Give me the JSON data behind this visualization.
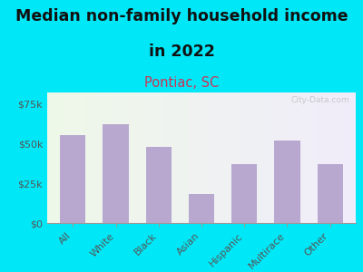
{
  "title_line1": "Median non-family household income",
  "title_line2": "in 2022",
  "subtitle": "Pontiac, SC",
  "categories": [
    "All",
    "White",
    "Black",
    "Asian",
    "Hispanic",
    "Multirace",
    "Other"
  ],
  "values": [
    55000,
    62000,
    48000,
    18000,
    37000,
    52000,
    37000
  ],
  "bar_color": "#b8a8d0",
  "background_outer": "#00e8f8",
  "background_inner_left": "#eef8e8",
  "background_inner_right": "#f0ecfa",
  "yticks": [
    0,
    25000,
    50000,
    75000
  ],
  "ytick_labels": [
    "$0",
    "$25k",
    "$50k",
    "$75k"
  ],
  "ylim": [
    0,
    82000
  ],
  "title_fontsize": 12.5,
  "subtitle_fontsize": 10.5,
  "subtitle_color": "#cc3355",
  "title_color": "#111111",
  "tick_label_color": "#555555",
  "watermark": "City-Data.com",
  "watermark_color": "#bbbbbb",
  "watermark_alpha": 0.75
}
